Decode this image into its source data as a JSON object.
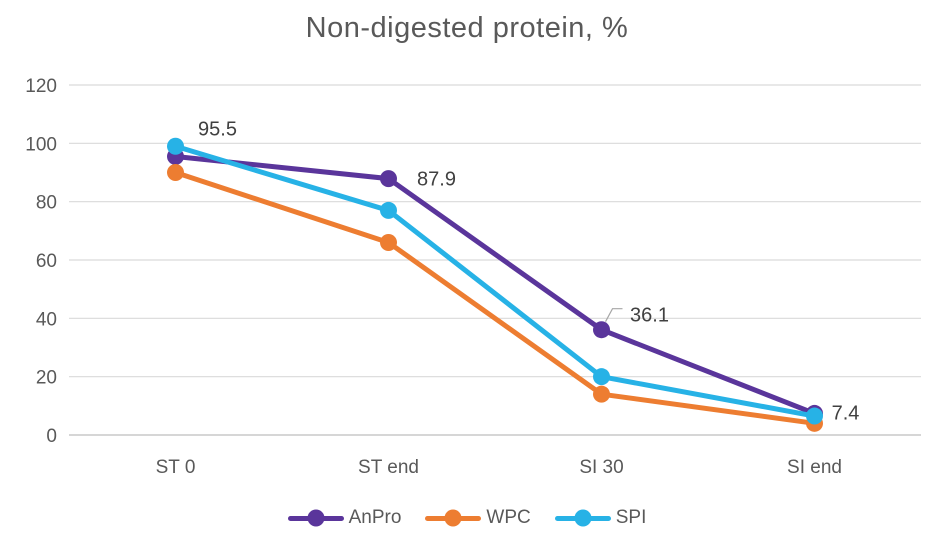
{
  "chart_data": {
    "type": "line",
    "title": "Non-digested protein, %",
    "categories": [
      "ST 0",
      "ST end",
      "SI 30",
      "SI end"
    ],
    "series": [
      {
        "name": "AnPro",
        "color": "#5A359B",
        "values": [
          95.5,
          87.9,
          36.1,
          7.4
        ],
        "point_labels": [
          "95.5",
          "87.9",
          "36.1",
          "7.4"
        ]
      },
      {
        "name": "WPC",
        "color": "#ED7D31",
        "values": [
          90,
          66,
          14,
          4
        ]
      },
      {
        "name": "SPI",
        "color": "#27B2E6",
        "values": [
          99,
          77,
          20,
          6.5
        ]
      }
    ],
    "y_axis": {
      "min": 0,
      "max": 120,
      "tick_step": 20,
      "ticks": [
        0,
        20,
        40,
        60,
        80,
        100,
        120
      ]
    },
    "x_axis": {
      "tick_labels": [
        "ST 0",
        "ST end",
        "SI 30",
        "SI end"
      ]
    },
    "grid": true,
    "legend_position": "bottom",
    "colors": {
      "title": "#595959",
      "axis_labels": "#595959",
      "data_labels": "#404040",
      "gridline": "#D9D9D9",
      "axis_line": "#C9C9C9",
      "leader_line": "#A6A6A6",
      "background": "#FFFFFF"
    }
  }
}
